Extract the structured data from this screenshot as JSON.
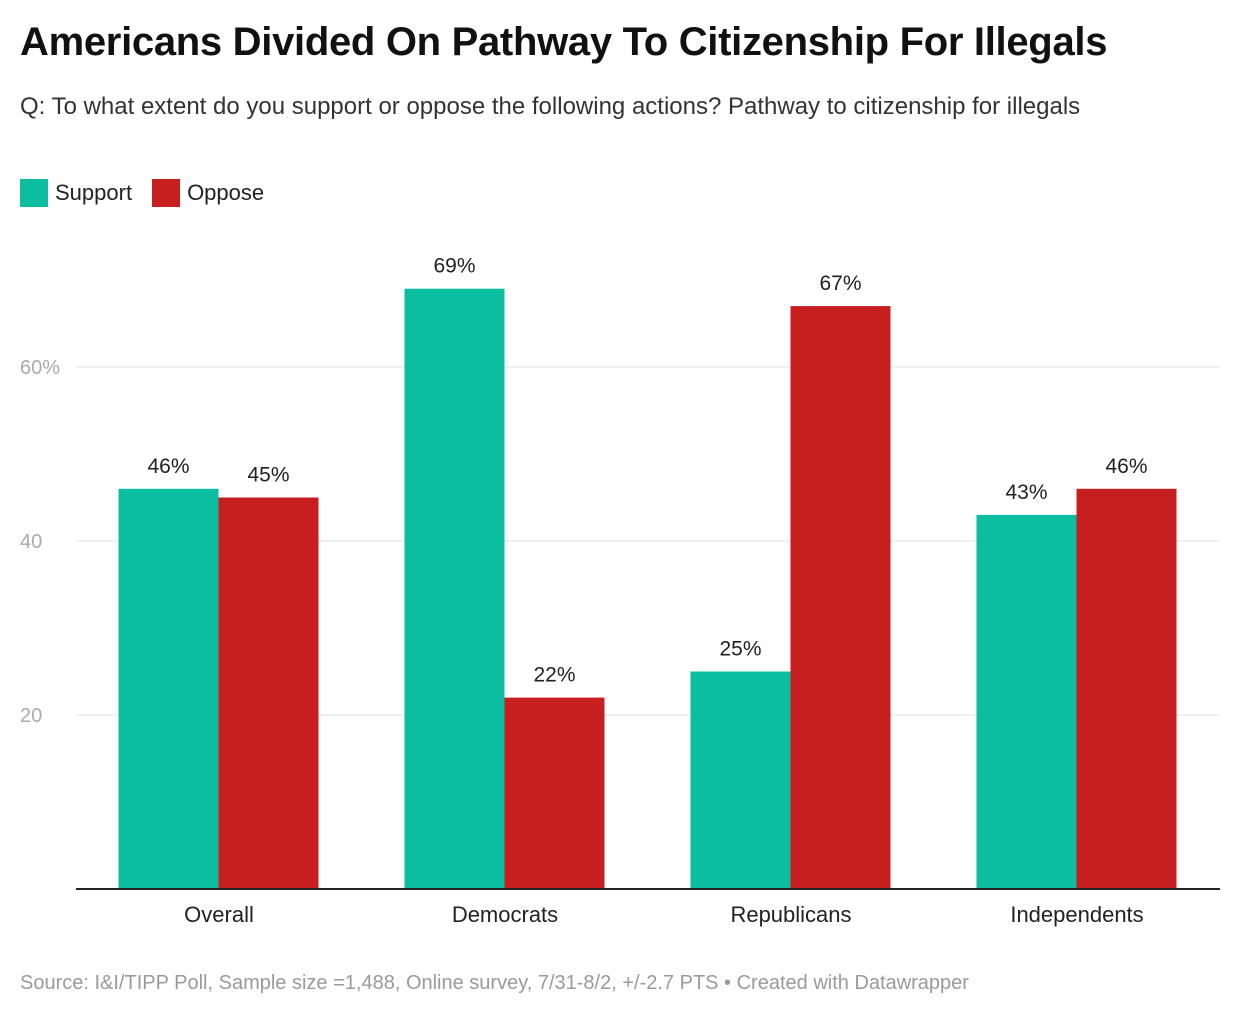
{
  "title": "Americans Divided On Pathway To Citizenship For Illegals",
  "subtitle": "Q: To what extent do you support or oppose the following actions? Pathway to citizenship for illegals",
  "footer": "Source: I&I/TIPP Poll, Sample size =1,488, Online survey, 7/31-8/2, +/-2.7 PTS • Created with Datawrapper",
  "chart_data": {
    "type": "bar",
    "title": "Americans Divided On Pathway To Citizenship For Illegals",
    "xlabel": "",
    "ylabel": "",
    "ylim": [
      0,
      75
    ],
    "yticks": [
      20,
      40,
      60
    ],
    "ytick_labels": [
      "20",
      "40",
      "60%"
    ],
    "grid": true,
    "legend": "top-left",
    "categories": [
      "Overall",
      "Democrats",
      "Republicans",
      "Independents"
    ],
    "series": [
      {
        "name": "Support",
        "color": "#0bbea0",
        "values": [
          46,
          69,
          25,
          43
        ],
        "labels": [
          "46%",
          "69%",
          "25%",
          "43%"
        ]
      },
      {
        "name": "Oppose",
        "color": "#c71e1f",
        "values": [
          45,
          22,
          67,
          46
        ],
        "labels": [
          "45%",
          "22%",
          "67%",
          "46%"
        ]
      }
    ]
  }
}
